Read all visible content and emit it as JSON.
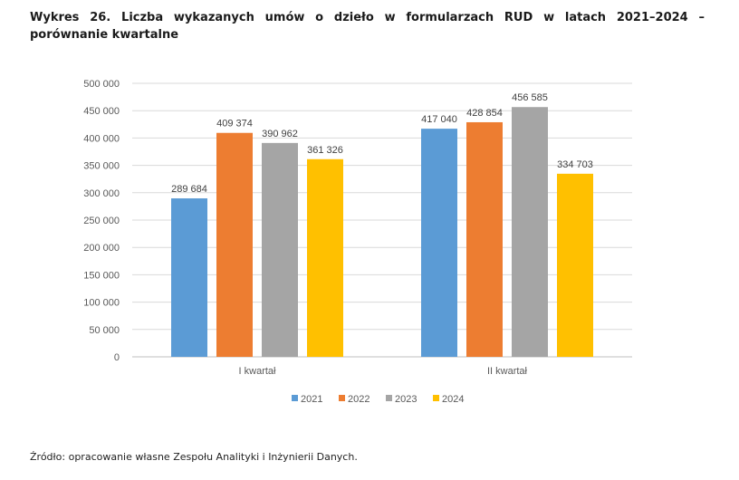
{
  "title_line1": "Wykres 26. Liczba wykazanych umów o dzieło w formularzach RUD w latach 2021–2024 –",
  "title_line2": "porównanie kwartalne",
  "source": "Źródło: opracowanie własne Zespołu Analityki i Inżynierii Danych.",
  "chart_data": {
    "type": "bar",
    "title": "Wykres 26. Liczba wykazanych umów o dzieło w formularzach RUD w latach 2021–2024 – porównanie kwartalne",
    "categories": [
      "I kwartał",
      "II kwartał"
    ],
    "series": [
      {
        "name": "2021",
        "color": "#5B9BD5",
        "values": [
          289684,
          417040
        ],
        "labels": [
          "289 684",
          "417 040"
        ]
      },
      {
        "name": "2022",
        "color": "#ED7D31",
        "values": [
          409374,
          428854
        ],
        "labels": [
          "409 374",
          "428 854"
        ]
      },
      {
        "name": "2023",
        "color": "#A5A5A5",
        "values": [
          390962,
          456585
        ],
        "labels": [
          "390 962",
          "456 585"
        ]
      },
      {
        "name": "2024",
        "color": "#FFC000",
        "values": [
          361326,
          334703
        ],
        "labels": [
          "361 326",
          "334 703"
        ]
      }
    ],
    "ylim": [
      0,
      500000
    ],
    "yticks": [
      0,
      50000,
      100000,
      150000,
      200000,
      250000,
      300000,
      350000,
      400000,
      450000,
      500000
    ],
    "ytick_labels": [
      "0",
      "50 000",
      "100 000",
      "150 000",
      "200 000",
      "250 000",
      "300 000",
      "350 000",
      "400 000",
      "450 000",
      "500 000"
    ],
    "xlabel": "",
    "ylabel": "",
    "grid": true,
    "legend_position": "bottom"
  }
}
